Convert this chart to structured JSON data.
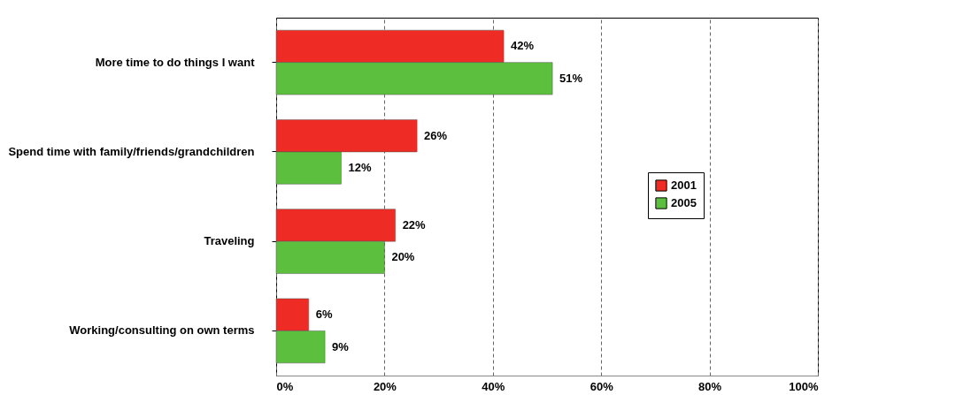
{
  "chart_data": {
    "type": "bar",
    "orientation": "horizontal",
    "categories": [
      "More time to do things I want",
      "Spend time with family/friends/grandchildren",
      "Traveling",
      "Working/consulting on own terms"
    ],
    "series": [
      {
        "name": "2001",
        "color": "#ee2b24",
        "values": [
          42,
          26,
          22,
          6
        ],
        "value_labels": [
          "42%",
          "26%",
          "22%",
          "6%"
        ]
      },
      {
        "name": "2005",
        "color": "#5cbf3d",
        "values": [
          51,
          12,
          20,
          9
        ],
        "value_labels": [
          "51%",
          "12%",
          "20%",
          "9%"
        ]
      }
    ],
    "xlim": [
      0,
      100
    ],
    "xticks": [
      {
        "value": 0,
        "label": "0%"
      },
      {
        "value": 20,
        "label": "20%"
      },
      {
        "value": 40,
        "label": "40%"
      },
      {
        "value": 60,
        "label": "60%"
      },
      {
        "value": 80,
        "label": "80%"
      },
      {
        "value": 100,
        "label": "100%"
      }
    ],
    "grid": "x",
    "legend": "right"
  }
}
